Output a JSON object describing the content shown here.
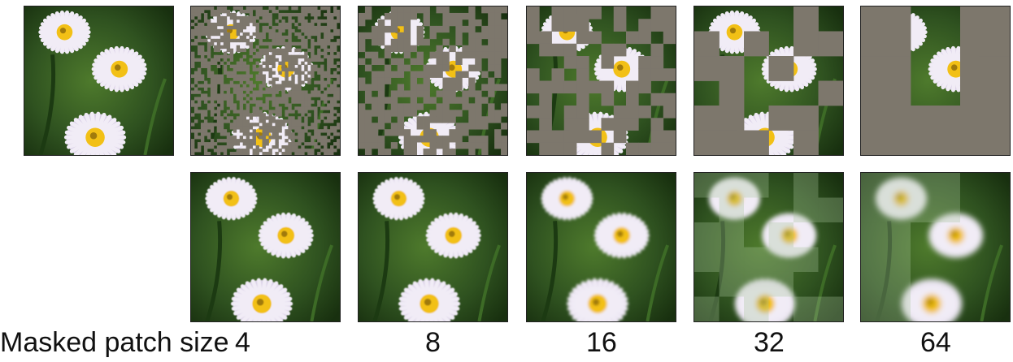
{
  "caption_prefix": "Masked patch size",
  "patch_sizes": [
    "4",
    "8",
    "16",
    "32",
    "64"
  ],
  "colors": {
    "mask_gray": "#7d776c",
    "background_green": "#2f4a1e",
    "petal": "#f1ecf6",
    "center": "#f2c012"
  }
}
